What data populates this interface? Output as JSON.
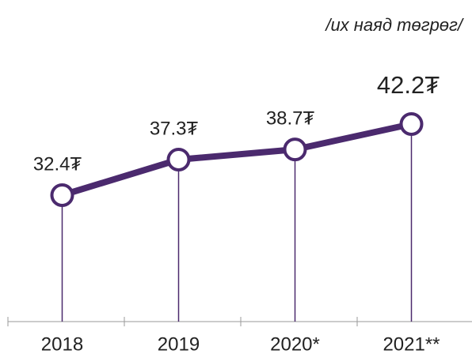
{
  "chart_data": {
    "type": "line",
    "subtitle": "/их наяд төгрөг/",
    "categories": [
      "2018",
      "2019",
      "2020*",
      "2021**"
    ],
    "values": [
      32.4,
      37.3,
      38.7,
      42.2
    ],
    "value_labels": [
      "32.4₮",
      "37.3₮",
      "38.7₮",
      "42.2₮"
    ],
    "color": "#4b2a6e"
  }
}
